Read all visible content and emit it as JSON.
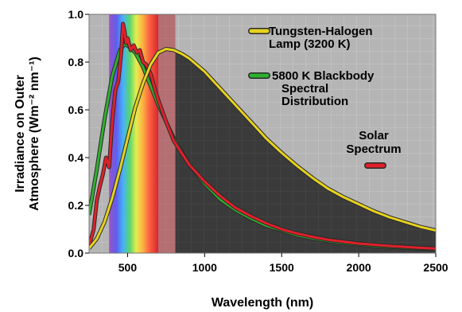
{
  "chart_data": {
    "type": "line",
    "title": "",
    "xlabel": "Wavelength (nm)",
    "ylabel_line1": "Irradiance on Outer",
    "ylabel_line2": "Atmosphere (Wm⁻² nm⁻¹)",
    "xlim": [
      250,
      2500
    ],
    "ylim": [
      0,
      1.0
    ],
    "x_ticks": [
      500,
      1000,
      1500,
      2000,
      2500
    ],
    "x_tick_labels": [
      "500",
      "1000",
      "1500",
      "2000",
      "2500"
    ],
    "y_ticks": [
      0,
      0.2,
      0.4,
      0.6,
      0.8,
      1.0
    ],
    "y_tick_labels": [
      "0.0",
      "0.2",
      "0.4",
      "0.6",
      "0.8",
      "1.0"
    ],
    "grid": true,
    "legend_placement": "right",
    "background": {
      "visible_band_nm": [
        380,
        700
      ],
      "dark_region_from_nm": 810,
      "plot_bg_color": "#b5b5b5",
      "dark_region_color": "#3a3a3a"
    },
    "series": [
      {
        "name_lines": [
          "Tungsten-Halogen",
          "Lamp (3200 K)"
        ],
        "color": "#e6d21e",
        "x": [
          250,
          300,
          350,
          400,
          450,
          500,
          550,
          600,
          650,
          700,
          750,
          800,
          850,
          900,
          1000,
          1100,
          1200,
          1300,
          1400,
          1500,
          1600,
          1700,
          1800,
          1900,
          2000,
          2100,
          2200,
          2300,
          2400,
          2500
        ],
        "y": [
          0.02,
          0.06,
          0.13,
          0.23,
          0.35,
          0.48,
          0.61,
          0.71,
          0.79,
          0.84,
          0.855,
          0.85,
          0.835,
          0.815,
          0.76,
          0.69,
          0.62,
          0.55,
          0.48,
          0.42,
          0.365,
          0.315,
          0.27,
          0.235,
          0.205,
          0.175,
          0.15,
          0.13,
          0.11,
          0.095
        ]
      },
      {
        "name_lines": [
          "5800 K Blackbody",
          "Spectral",
          "Distribution"
        ],
        "color": "#2fb02f",
        "x": [
          250,
          300,
          350,
          400,
          450,
          480,
          500,
          550,
          600,
          650,
          700,
          800,
          900,
          1000,
          1100,
          1200,
          1300,
          1400,
          1500,
          1600,
          1700,
          1800,
          1900,
          2000,
          2100,
          2200,
          2300,
          2400,
          2500
        ],
        "y": [
          0.16,
          0.35,
          0.56,
          0.74,
          0.85,
          0.875,
          0.87,
          0.84,
          0.78,
          0.7,
          0.62,
          0.48,
          0.37,
          0.29,
          0.225,
          0.18,
          0.145,
          0.115,
          0.095,
          0.075,
          0.062,
          0.051,
          0.043,
          0.036,
          0.03,
          0.026,
          0.022,
          0.019,
          0.016
        ]
      },
      {
        "name_lines": [
          "Solar",
          "Spectrum"
        ],
        "color": "#e0202a",
        "x": [
          250,
          280,
          300,
          320,
          340,
          360,
          380,
          400,
          420,
          440,
          460,
          470,
          480,
          490,
          500,
          520,
          540,
          560,
          580,
          600,
          620,
          650,
          680,
          700,
          750,
          800,
          900,
          1000,
          1100,
          1200,
          1300,
          1400,
          1500,
          1600,
          1700,
          1800,
          2000,
          2200,
          2400,
          2500
        ],
        "y": [
          0.03,
          0.1,
          0.22,
          0.28,
          0.33,
          0.4,
          0.36,
          0.55,
          0.68,
          0.72,
          0.85,
          0.96,
          0.93,
          0.88,
          0.9,
          0.85,
          0.87,
          0.84,
          0.85,
          0.8,
          0.79,
          0.75,
          0.68,
          0.64,
          0.55,
          0.47,
          0.37,
          0.3,
          0.24,
          0.19,
          0.155,
          0.125,
          0.1,
          0.082,
          0.068,
          0.056,
          0.04,
          0.03,
          0.022,
          0.019
        ]
      }
    ]
  }
}
